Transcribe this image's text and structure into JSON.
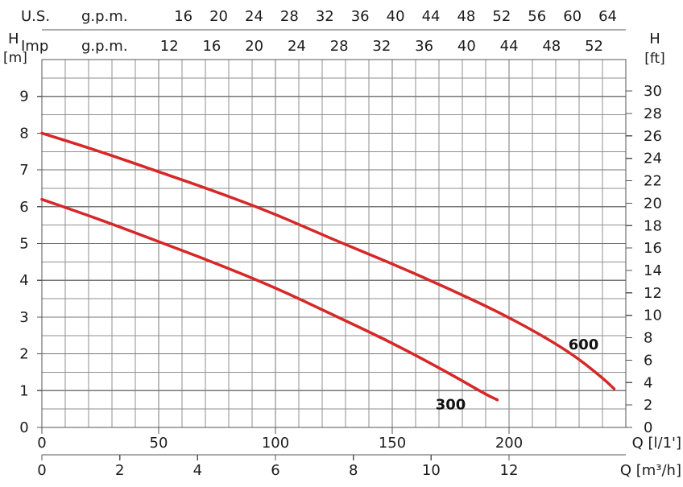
{
  "chart_data": {
    "type": "line",
    "x_axis_primary": {
      "label": "Q [l/1']",
      "ticks": [
        0,
        50,
        100,
        150,
        200
      ],
      "ticks_text": [
        "0",
        "50",
        "100",
        "150",
        "200"
      ],
      "range": [
        0,
        250
      ]
    },
    "x_axis_secondary": {
      "label": "Q [m³/h]",
      "ticks": [
        0,
        2,
        4,
        6,
        8,
        10,
        12
      ],
      "ticks_text": [
        "0",
        "2",
        "4",
        "6",
        "8",
        "10",
        "12"
      ],
      "range": [
        0,
        15
      ]
    },
    "top_axis_us": {
      "label_left": "U.S.",
      "label_right": "g.p.m.",
      "ticks": [
        16,
        20,
        24,
        28,
        32,
        36,
        40,
        44,
        48,
        52,
        56,
        60,
        64
      ],
      "ticks_text": [
        "16",
        "20",
        "24",
        "28",
        "32",
        "36",
        "40",
        "44",
        "48",
        "52",
        "56",
        "60",
        "64"
      ]
    },
    "top_axis_imp": {
      "label_left": "Imp",
      "label_right": "g.p.m.",
      "ticks": [
        12,
        16,
        20,
        24,
        28,
        32,
        36,
        40,
        44,
        48,
        52
      ],
      "ticks_text": [
        "12",
        "16",
        "20",
        "24",
        "28",
        "32",
        "36",
        "40",
        "44",
        "48",
        "52"
      ]
    },
    "y_axis_left": {
      "label_top": "H",
      "label_unit": "[m]",
      "ticks": [
        0,
        1,
        2,
        3,
        4,
        5,
        6,
        7,
        8,
        9
      ],
      "ticks_text": [
        "0",
        "1",
        "2",
        "3",
        "4",
        "5",
        "6",
        "7",
        "8",
        "9"
      ],
      "range": [
        0,
        10
      ]
    },
    "y_axis_right": {
      "label_top": "H",
      "label_unit": "[ft]",
      "ticks": [
        0,
        2,
        4,
        6,
        8,
        10,
        12,
        14,
        16,
        18,
        20,
        22,
        24,
        26,
        28,
        30
      ],
      "ticks_text": [
        "0",
        "2",
        "4",
        "6",
        "8",
        "10",
        "12",
        "14",
        "16",
        "18",
        "20",
        "22",
        "24",
        "26",
        "28",
        "30"
      ]
    },
    "series": [
      {
        "name": "300",
        "color": "#d62828",
        "x": [
          0,
          25,
          50,
          75,
          100,
          125,
          150,
          175,
          190,
          195
        ],
        "y": [
          6.2,
          5.65,
          5.05,
          4.45,
          3.8,
          3.05,
          2.3,
          1.45,
          0.9,
          0.75
        ]
      },
      {
        "name": "600",
        "color": "#d62828",
        "x": [
          0,
          25,
          50,
          75,
          100,
          125,
          150,
          175,
          200,
          225,
          240,
          245
        ],
        "y": [
          8.0,
          7.5,
          6.95,
          6.4,
          5.8,
          5.1,
          4.45,
          3.75,
          3.0,
          2.1,
          1.35,
          1.05
        ]
      }
    ],
    "ylim": [
      0,
      10
    ],
    "xlim": [
      0,
      250
    ],
    "grid": true
  }
}
